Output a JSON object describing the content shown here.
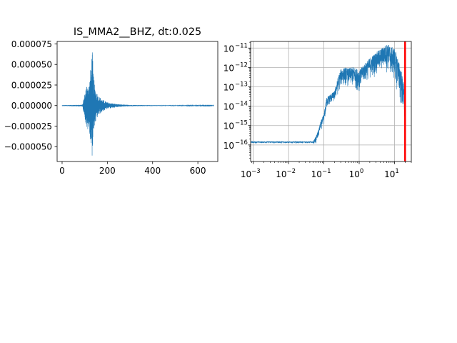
{
  "chart_data": [
    {
      "type": "line",
      "title": "IS_MMA2__BHZ, dt:0.025",
      "xlabel": "",
      "ylabel": "",
      "xlim": [
        -22,
        688
      ],
      "ylim": [
        -6.8e-05,
        7.8e-05
      ],
      "x_ticks": [
        {
          "value": 0,
          "label": "0"
        },
        {
          "value": 200,
          "label": "200"
        },
        {
          "value": 400,
          "label": "400"
        },
        {
          "value": 600,
          "label": "600"
        }
      ],
      "y_ticks": [
        {
          "value": 7.5e-05,
          "label": "0.000075"
        },
        {
          "value": 5e-05,
          "label": "0.000050"
        },
        {
          "value": 2.5e-05,
          "label": "0.000025"
        },
        {
          "value": 0,
          "label": "0.000000"
        },
        {
          "value": -2.5e-05,
          "label": "−0.000025"
        },
        {
          "value": -5e-05,
          "label": "−0.000050"
        }
      ],
      "grid": false,
      "color": "#1f77b4",
      "series": [
        {
          "x": [
            0,
            90,
            100,
            110,
            120,
            128,
            133,
            138,
            145,
            160,
            180,
            200,
            250,
            300,
            400,
            500,
            600,
            670
          ],
          "envelope_upper": [
            5e-07,
            1e-06,
            1.5e-05,
            2.8e-05,
            2.5e-05,
            5.2e-05,
            7.2e-05,
            4e-05,
            2.2e-05,
            1.2e-05,
            7e-06,
            4e-06,
            1.5e-06,
            8e-07,
            5e-07,
            4e-07,
            3e-07,
            3e-07
          ],
          "envelope_lower": [
            -5e-07,
            -1e-06,
            -1.4e-05,
            -3.2e-05,
            -2.8e-05,
            -5.5e-05,
            -6.2e-05,
            -4.2e-05,
            -2.3e-05,
            -1.2e-05,
            -7e-06,
            -4e-06,
            -1.5e-06,
            -8e-07,
            -5e-07,
            -4e-07,
            -3e-07,
            -3e-07
          ]
        }
      ]
    },
    {
      "type": "line",
      "title": "",
      "xlabel": "",
      "ylabel": "",
      "x_scale": "log",
      "y_scale": "log",
      "xlim": [
        0.00084,
        30
      ],
      "ylim": [
        1.4e-17,
        2.2e-11
      ],
      "x_ticks": [
        {
          "value": 0.001,
          "base": "10",
          "exp": "−3"
        },
        {
          "value": 0.01,
          "base": "10",
          "exp": "−2"
        },
        {
          "value": 0.1,
          "base": "10",
          "exp": "−1"
        },
        {
          "value": 1,
          "base": "10",
          "exp": "0"
        },
        {
          "value": 10,
          "base": "10",
          "exp": "1"
        }
      ],
      "y_ticks": [
        {
          "value": 1e-16,
          "base": "10",
          "exp": "−16"
        },
        {
          "value": 1e-15,
          "base": "10",
          "exp": "−15"
        },
        {
          "value": 1e-14,
          "base": "10",
          "exp": "−14"
        },
        {
          "value": 1e-13,
          "base": "10",
          "exp": "−13"
        },
        {
          "value": 1e-12,
          "base": "10",
          "exp": "−12"
        },
        {
          "value": 1e-11,
          "base": "10",
          "exp": "−11"
        }
      ],
      "grid": true,
      "color": "#1f77b4",
      "marker_line": {
        "x": 20,
        "color": "#ff0000"
      },
      "series": [
        {
          "x": [
            0.00084,
            0.05,
            0.06,
            0.07,
            0.08,
            0.1,
            0.12,
            0.15,
            0.2,
            0.25,
            0.3,
            0.4,
            0.5,
            0.7,
            1.0,
            1.3,
            1.6,
            2.0,
            3.0,
            4.0,
            5.0,
            6.0,
            7.0,
            8.0,
            10.0,
            12.0,
            15.0,
            18.0,
            20.0
          ],
          "envelope_upper": [
            1.5e-16,
            1.5e-16,
            3e-16,
            6e-16,
            1.5e-15,
            4e-15,
            3e-14,
            4e-14,
            6e-14,
            3e-13,
            8e-13,
            1e-12,
            9e-13,
            1.1e-12,
            7e-13,
            1.3e-12,
            2e-12,
            3e-12,
            6e-12,
            9e-12,
            1.2e-11,
            1.6e-11,
            1.5e-11,
            1.2e-11,
            1e-11,
            4e-12,
            1e-12,
            2e-13,
            5e-14
          ],
          "envelope_lower": [
            1.2e-16,
            1.2e-16,
            8e-17,
            2e-16,
            5e-16,
            8e-16,
            6e-15,
            1e-14,
            1.5e-14,
            3e-14,
            7e-14,
            1e-13,
            8e-14,
            6e-14,
            5e-14,
            1e-13,
            1.5e-13,
            2e-13,
            3e-13,
            4e-13,
            6e-13,
            4e-13,
            3e-13,
            2e-13,
            1e-13,
            4e-14,
            5e-15,
            1e-15,
            8e-17
          ]
        }
      ]
    }
  ]
}
